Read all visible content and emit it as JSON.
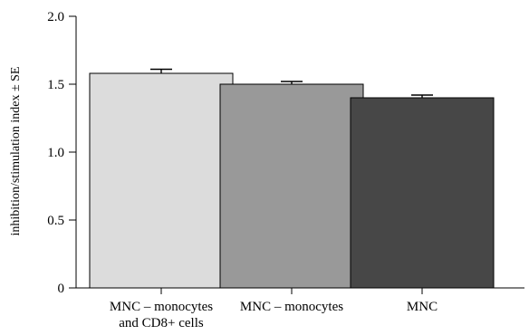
{
  "chart_data": {
    "type": "bar",
    "title": "",
    "xlabel": "",
    "ylabel": "inhibition/stimulation index ± SE",
    "ylim": [
      0,
      2.0
    ],
    "yticks": [
      "0",
      "0.5",
      "1.0",
      "1.5",
      "2.0"
    ],
    "ytick_values": [
      0,
      0.5,
      1.0,
      1.5,
      2.0
    ],
    "categories": [
      [
        "MNC – monocytes",
        "and CD8+ cells"
      ],
      [
        "MNC – monocytes"
      ],
      [
        "MNC"
      ]
    ],
    "values": [
      1.58,
      1.5,
      1.4
    ],
    "errors": [
      0.03,
      0.02,
      0.02
    ],
    "colors": [
      "#dcdcdc",
      "#999999",
      "#474747"
    ],
    "grid": false
  }
}
